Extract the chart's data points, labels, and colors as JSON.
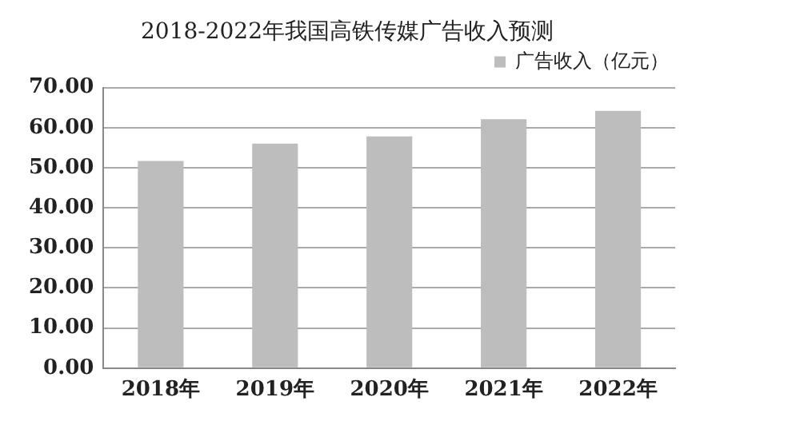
{
  "chart_data": {
    "type": "bar",
    "title": "2018-2022年我国高铁传媒广告收入预测",
    "categories": [
      "2018年",
      "2019年",
      "2020年",
      "2021年",
      "2022年"
    ],
    "series": [
      {
        "name": "广告收入（亿元）",
        "color": "#bdbdbd",
        "values": [
          51.7,
          56.0,
          57.8,
          62.1,
          64.2
        ]
      }
    ],
    "ylim": [
      0,
      70
    ],
    "yticks": [
      {
        "value": 0,
        "label": "0.00"
      },
      {
        "value": 10,
        "label": "10.00"
      },
      {
        "value": 20,
        "label": "20.00"
      },
      {
        "value": 30,
        "label": "30.00"
      },
      {
        "value": 40,
        "label": "40.00"
      },
      {
        "value": 50,
        "label": "50.00"
      },
      {
        "value": 60,
        "label": "60.00"
      },
      {
        "value": 70,
        "label": "70.00"
      }
    ],
    "grid": "y",
    "legend": "top right"
  }
}
